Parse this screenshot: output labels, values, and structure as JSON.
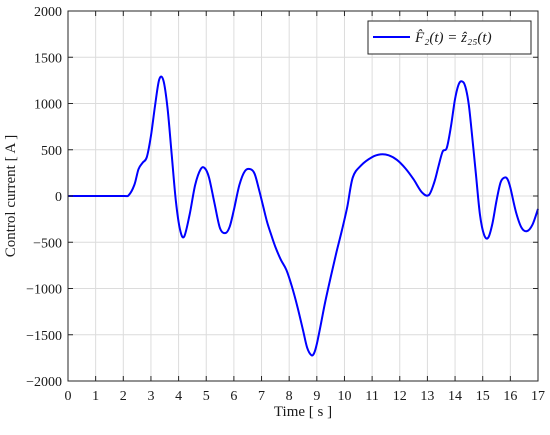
{
  "chart_data": {
    "type": "line",
    "xlabel": "Time [ s ]",
    "ylabel": "Control current [ A ]",
    "xlim": [
      0,
      17
    ],
    "ylim": [
      -2000,
      2000
    ],
    "x_ticks": [
      "0",
      "1",
      "2",
      "3",
      "4",
      "5",
      "6",
      "7",
      "8",
      "9",
      "10",
      "11",
      "12",
      "13",
      "14",
      "15",
      "16",
      "17"
    ],
    "y_ticks": [
      "2000",
      "1500",
      "1000",
      "500",
      "0",
      "−500",
      "−1000",
      "−1500",
      "−2000"
    ],
    "grid": true,
    "legend_position": "top-right",
    "series": [
      {
        "name": "F̂₂(t) = ẑ₂₅(t)",
        "color": "#0000ff",
        "x": [
          0,
          1,
          2,
          2.2,
          2.4,
          2.55,
          2.7,
          2.85,
          3.0,
          3.15,
          3.3,
          3.45,
          3.6,
          3.75,
          3.9,
          4.05,
          4.2,
          4.4,
          4.6,
          4.8,
          4.95,
          5.1,
          5.3,
          5.5,
          5.7,
          5.85,
          6.0,
          6.2,
          6.4,
          6.6,
          6.75,
          6.9,
          7.05,
          7.2,
          7.35,
          7.5,
          7.7,
          7.9,
          8.1,
          8.3,
          8.5,
          8.65,
          8.8,
          8.9,
          9.0,
          9.15,
          9.3,
          9.5,
          9.7,
          9.9,
          10.1,
          10.3,
          10.6,
          11.0,
          11.3,
          11.6,
          11.9,
          12.2,
          12.5,
          12.8,
          13.05,
          13.25,
          13.4,
          13.55,
          13.7,
          13.85,
          14.0,
          14.15,
          14.3,
          14.4,
          14.5,
          14.6,
          14.75,
          14.9,
          15.05,
          15.2,
          15.35,
          15.5,
          15.65,
          15.8,
          15.9,
          16.0,
          16.2,
          16.4,
          16.6,
          16.8,
          17.0
        ],
        "y": [
          0,
          0,
          0,
          10,
          120,
          290,
          360,
          420,
          650,
          980,
          1260,
          1250,
          950,
          450,
          -50,
          -360,
          -440,
          -200,
          120,
          290,
          300,
          200,
          -80,
          -350,
          -400,
          -330,
          -150,
          120,
          270,
          290,
          240,
          80,
          -100,
          -280,
          -420,
          -550,
          -690,
          -800,
          -980,
          -1200,
          -1450,
          -1640,
          -1720,
          -1700,
          -1600,
          -1380,
          -1150,
          -880,
          -620,
          -380,
          -120,
          200,
          330,
          420,
          450,
          440,
          390,
          300,
          180,
          40,
          10,
          150,
          320,
          480,
          520,
          750,
          1050,
          1220,
          1230,
          1150,
          980,
          700,
          250,
          -200,
          -420,
          -450,
          -300,
          -50,
          150,
          200,
          180,
          90,
          -170,
          -340,
          -380,
          -310,
          -140
        ]
      }
    ]
  }
}
